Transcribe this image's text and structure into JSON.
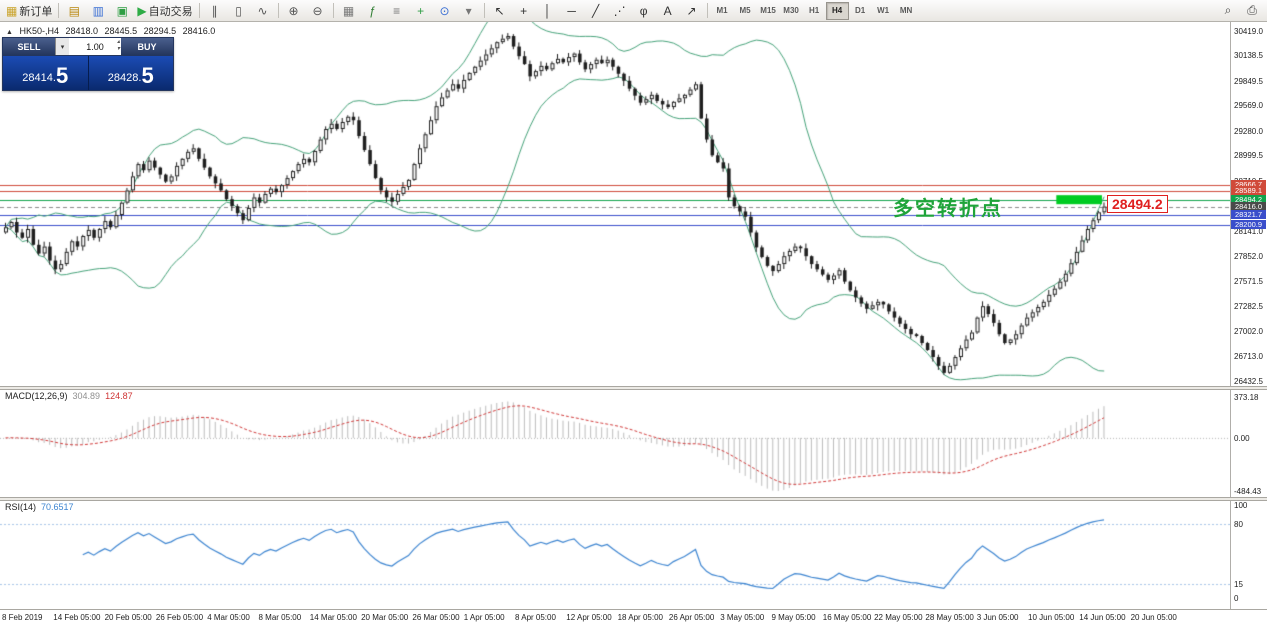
{
  "toolbar": {
    "timeframes": [
      "M1",
      "M5",
      "M15",
      "M30",
      "H1",
      "H4",
      "D1",
      "W1",
      "MN"
    ],
    "active_timeframe": "H4",
    "items": [
      {
        "name": "new-order-button",
        "glyph": "▦",
        "glyph_color": "#c9a227",
        "label": "新订单"
      },
      {
        "type": "sep"
      },
      {
        "name": "charts-grid-icon-button",
        "glyph": "▤",
        "glyph_color": "#b8860b"
      },
      {
        "name": "profiles-icon-button",
        "glyph": "▥",
        "glyph_color": "#3b6fd4"
      },
      {
        "name": "market-watch-icon-button",
        "glyph": "▣",
        "glyph_color": "#2f9e44"
      },
      {
        "name": "auto-trading-button",
        "glyph": "▶",
        "glyph_color": "#2eac46",
        "label": "自动交易"
      },
      {
        "type": "sep"
      },
      {
        "name": "bar-chart-icon-button",
        "glyph": "∥",
        "glyph_color": "#555555"
      },
      {
        "name": "candlestick-chart-icon-button",
        "glyph": "▯",
        "glyph_color": "#555555"
      },
      {
        "name": "line-chart-icon-button",
        "glyph": "∿",
        "glyph_color": "#555555"
      },
      {
        "type": "sep"
      },
      {
        "name": "zoom-in-button",
        "glyph": "⊕",
        "glyph_color": "#555555"
      },
      {
        "name": "zoom-out-button",
        "glyph": "⊖",
        "glyph_color": "#555555"
      },
      {
        "type": "sep"
      },
      {
        "name": "tile-windows-button",
        "glyph": "▦",
        "glyph_color": "#777777"
      },
      {
        "name": "indicators-button",
        "glyph": "ƒ",
        "glyph_color": "#2f7d32"
      },
      {
        "name": "period-separators-button",
        "glyph": "≡",
        "glyph_color": "#777777"
      },
      {
        "name": "add-indicator-button",
        "glyph": "+",
        "glyph_color": "#2f9e44"
      },
      {
        "name": "time-button",
        "glyph": "⊙",
        "glyph_color": "#3b6fd4"
      },
      {
        "name": "chart-shift-button",
        "glyph": "▾",
        "glyph_color": "#777777"
      },
      {
        "type": "sep"
      },
      {
        "name": "cursor-tool-button",
        "glyph": "↖",
        "glyph_color": "#333333"
      },
      {
        "name": "crosshair-tool-button",
        "glyph": "+",
        "glyph_color": "#333333"
      },
      {
        "name": "vertical-line-tool-button",
        "glyph": "│",
        "glyph_color": "#333333"
      },
      {
        "name": "horizontal-line-tool-button",
        "glyph": "─",
        "glyph_color": "#333333"
      },
      {
        "name": "trendline-tool-button",
        "glyph": "╱",
        "glyph_color": "#333333"
      },
      {
        "name": "channel-tool-button",
        "glyph": "⋰",
        "glyph_color": "#333333"
      },
      {
        "name": "fibonacci-tool-button",
        "glyph": "φ",
        "glyph_color": "#333333"
      },
      {
        "name": "text-tool-button",
        "glyph": "A",
        "glyph_color": "#333333"
      },
      {
        "name": "arrows-tool-button",
        "glyph": "↗",
        "glyph_color": "#333333"
      },
      {
        "type": "sep"
      },
      {
        "type": "timeframes"
      },
      {
        "type": "spacer"
      },
      {
        "name": "search-button",
        "glyph": "⌕",
        "glyph_color": "#444444"
      },
      {
        "name": "print-button",
        "glyph": "⎙",
        "glyph_color": "#444444"
      }
    ]
  },
  "chart": {
    "header": {
      "marker": "▲",
      "symbol": "HK50-,H4",
      "open": "28418.0",
      "high": "28445.5",
      "low": "28294.5",
      "close": "28416.0"
    },
    "trade_panel": {
      "sell_label": "SELL",
      "buy_label": "BUY",
      "volume": "1.00",
      "dropdown_glyph": "▾",
      "spin_up": "▴",
      "spin_down": "▾",
      "sell_price_small": "28414.",
      "sell_price_big": "5",
      "buy_price_small": "28428.",
      "buy_price_big": "5"
    },
    "annotation": {
      "text": "多空转折点",
      "price_tag": "28494.2"
    },
    "price_axis": [
      30419.0,
      30138.5,
      29849.5,
      29569.0,
      29280.0,
      28999.5,
      28710.5,
      28141.0,
      27852.0,
      27571.5,
      27282.5,
      27002.0,
      26713.0,
      26432.5
    ],
    "lines": [
      {
        "price": 28666.7,
        "label": "28666.7",
        "color": "#d04a3a"
      },
      {
        "price": 28589.1,
        "label": "28589.1",
        "color": "#d04a3a"
      },
      {
        "price": 28494.2,
        "label": "28494.2",
        "color": "#11a34c"
      },
      {
        "price": 28416.0,
        "label": "28416.0",
        "color": "#8a8a8a",
        "dashed": true,
        "tag_bg": "#4a4a4a"
      },
      {
        "price": 28321.7,
        "label": "28321.7",
        "color": "#3a4ecb"
      },
      {
        "price": 28200.9,
        "label": "28200.9",
        "color": "#3a4ecb"
      }
    ]
  },
  "macd": {
    "label": "MACD(12,26,9)",
    "main_value": "304.89",
    "signal_value": "124.87",
    "axis": [
      373.18,
      0.0,
      -484.43
    ],
    "histogram_color": "#bdbdbd",
    "signal_color": "#d23a3a"
  },
  "rsi": {
    "label": "RSI(14)",
    "value": "70.6517",
    "axis": [
      100,
      80,
      15,
      0
    ],
    "levels": [
      80,
      15
    ],
    "line_color": "#3d85d1",
    "level_color": "#a9c6e8"
  },
  "time_axis": [
    "8 Feb 2019",
    "14 Feb 05:00",
    "20 Feb 05:00",
    "26 Feb 05:00",
    "4 Mar 05:00",
    "8 Mar 05:00",
    "14 Mar 05:00",
    "20 Mar 05:00",
    "26 Mar 05:00",
    "1 Apr 05:00",
    "8 Apr 05:00",
    "12 Apr 05:00",
    "18 Apr 05:00",
    "26 Apr 05:00",
    "3 May 05:00",
    "9 May 05:00",
    "16 May 05:00",
    "22 May 05:00",
    "28 May 05:00",
    "3 Jun 05:00",
    "10 Jun 05:00",
    "14 Jun 05:00",
    "20 Jun 05:00"
  ],
  "chart_data": {
    "type": "candlestick",
    "symbol": "HK50-",
    "timeframe": "H4",
    "ohlc_header": {
      "open": 28418.0,
      "high": 28445.5,
      "low": 28294.5,
      "close": 28416.0
    },
    "ylim": [
      26370,
      30520
    ],
    "closes": [
      28180,
      28240,
      28120,
      28060,
      28160,
      27980,
      27880,
      27960,
      27800,
      27700,
      27760,
      27900,
      28020,
      27960,
      28080,
      28150,
      28060,
      28160,
      28250,
      28180,
      28320,
      28460,
      28600,
      28760,
      28900,
      28830,
      28940,
      28860,
      28780,
      28700,
      28760,
      28880,
      28960,
      29040,
      29080,
      28960,
      28860,
      28760,
      28680,
      28600,
      28500,
      28420,
      28340,
      28260,
      28400,
      28520,
      28460,
      28560,
      28620,
      28580,
      28660,
      28740,
      28820,
      28900,
      28960,
      28920,
      29050,
      29180,
      29300,
      29360,
      29300,
      29380,
      29440,
      29400,
      29220,
      29060,
      28900,
      28740,
      28600,
      28520,
      28470,
      28560,
      28640,
      28720,
      28900,
      29080,
      29240,
      29400,
      29560,
      29660,
      29740,
      29810,
      29760,
      29860,
      29940,
      30010,
      30080,
      30150,
      30220,
      30290,
      30330,
      30360,
      30240,
      30130,
      30040,
      29900,
      29960,
      30020,
      29980,
      30050,
      30100,
      30060,
      30120,
      30160,
      30060,
      29980,
      30040,
      30090,
      30050,
      30090,
      30010,
      29930,
      29850,
      29760,
      29680,
      29600,
      29640,
      29690,
      29620,
      29580,
      29550,
      29610,
      29650,
      29690,
      29750,
      29810,
      29420,
      29180,
      29000,
      28920,
      28850,
      28520,
      28420,
      28360,
      28300,
      28120,
      27950,
      27840,
      27740,
      27680,
      27760,
      27850,
      27910,
      27960,
      27940,
      27850,
      27760,
      27700,
      27640,
      27580,
      27630,
      27690,
      27560,
      27460,
      27380,
      27310,
      27250,
      27290,
      27330,
      27300,
      27220,
      27150,
      27080,
      27020,
      26960,
      26940,
      26860,
      26780,
      26700,
      26600,
      26520,
      26600,
      26700,
      26800,
      26900,
      26980,
      27150,
      27280,
      27190,
      27090,
      26960,
      26860,
      26900,
      26960,
      27060,
      27150,
      27210,
      27270,
      27330,
      27410,
      27480,
      27560,
      27650,
      27770,
      27900,
      28030,
      28160,
      28260,
      28350,
      28416
    ],
    "overlays": {
      "bollinger": {
        "period": 20,
        "deviation": 2,
        "color": "#46a37a"
      },
      "highlight_bar": {
        "from_index": 191,
        "to_index": 198,
        "price": 28494.2,
        "thickness_px": 9,
        "color": "#00cc22"
      }
    },
    "macd": {
      "params": "12,26,9",
      "current_main": 304.89,
      "current_signal": 124.87
    },
    "rsi": {
      "period": 14,
      "current": 70.6517
    }
  }
}
